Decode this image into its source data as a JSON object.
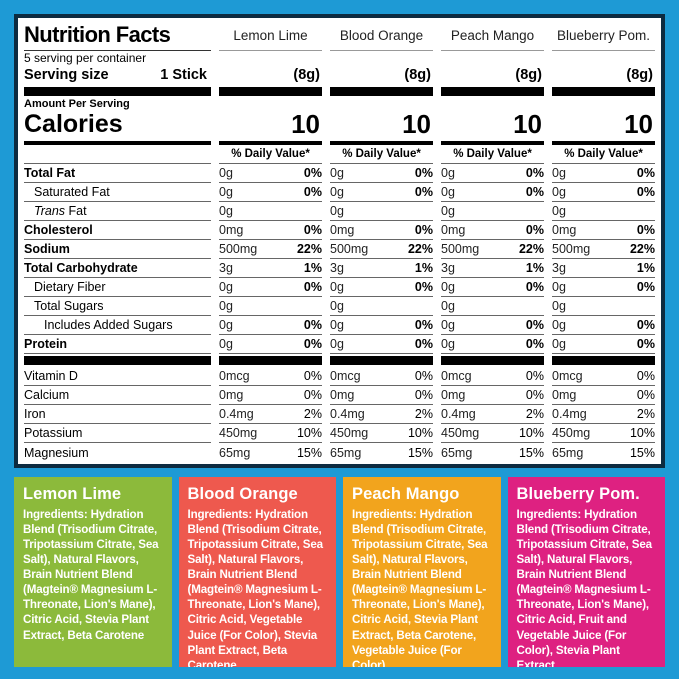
{
  "colors": {
    "background": "#1e9ad5",
    "panel_border": "#0d2b40",
    "bar": "#000000"
  },
  "panel": {
    "title": "Nutrition Facts",
    "servings_per_container": "5 serving per container",
    "serving_size_label": "Serving size",
    "serving_size_value": "1 Stick",
    "amount_per_serving": "Amount Per Serving",
    "calories_label": "Calories",
    "daily_value_header": "% Daily Value*",
    "columns": [
      {
        "flavor": "Lemon Lime",
        "serving": "(8g)",
        "calories": "10"
      },
      {
        "flavor": "Blood Orange",
        "serving": "(8g)",
        "calories": "10"
      },
      {
        "flavor": "Peach Mango",
        "serving": "(8g)",
        "calories": "10"
      },
      {
        "flavor": "Blueberry Pom.",
        "serving": "(8g)",
        "calories": "10"
      }
    ],
    "rows": [
      {
        "label": "Total Fat",
        "bold": true,
        "indent": 0,
        "amount": "0g",
        "dv": "0%",
        "dv_bold": true
      },
      {
        "label": "Saturated Fat",
        "bold": false,
        "indent": 1,
        "amount": "0g",
        "dv": "0%",
        "dv_bold": true
      },
      {
        "label_italic": "Trans",
        "label": " Fat",
        "bold": false,
        "indent": 1,
        "amount": "0g",
        "dv": "",
        "dv_bold": false
      },
      {
        "label": "Cholesterol",
        "bold": true,
        "indent": 0,
        "amount": "0mg",
        "dv": "0%",
        "dv_bold": true
      },
      {
        "label": "Sodium",
        "bold": true,
        "indent": 0,
        "amount": "500mg",
        "dv": "22%",
        "dv_bold": true
      },
      {
        "label": "Total Carbohydrate",
        "bold": true,
        "indent": 0,
        "amount": "3g",
        "dv": "1%",
        "dv_bold": true
      },
      {
        "label": "Dietary Fiber",
        "bold": false,
        "indent": 1,
        "amount": "0g",
        "dv": "0%",
        "dv_bold": true
      },
      {
        "label": "Total Sugars",
        "bold": false,
        "indent": 1,
        "amount": "0g",
        "dv": "",
        "dv_bold": false
      },
      {
        "label": "Includes Added Sugars",
        "bold": false,
        "indent": 2,
        "amount": "0g",
        "dv": "0%",
        "dv_bold": true
      },
      {
        "label": "Protein",
        "bold": true,
        "indent": 0,
        "amount": "0g",
        "dv": "0%",
        "dv_bold": true
      },
      {
        "divider": "thick-bar"
      },
      {
        "label": "Vitamin D",
        "bold": false,
        "indent": 0,
        "amount": "0mcg",
        "dv": "0%",
        "dv_bold": false
      },
      {
        "label": "Calcium",
        "bold": false,
        "indent": 0,
        "amount": "0mg",
        "dv": "0%",
        "dv_bold": false
      },
      {
        "label": "Iron",
        "bold": false,
        "indent": 0,
        "amount": "0.4mg",
        "dv": "2%",
        "dv_bold": false
      },
      {
        "label": "Potassium",
        "bold": false,
        "indent": 0,
        "amount": "450mg",
        "dv": "10%",
        "dv_bold": false
      },
      {
        "label": "Magnesium",
        "bold": false,
        "indent": 0,
        "amount": "65mg",
        "dv": "15%",
        "dv_bold": false
      }
    ]
  },
  "ingredient_boxes": [
    {
      "name": "Lemon Lime",
      "color": "#8cba3b",
      "text": "Ingredients: Hydration Blend (Trisodium Citrate, Tripotassium Citrate, Sea Salt), Natural Flavors, Brain Nutrient Blend (Magtein® Magnesium L-Threonate, Lion's Mane), Citric Acid, Stevia Plant Extract, Beta Carotene"
    },
    {
      "name": "Blood Orange",
      "color": "#ee594e",
      "text": "Ingredients: Hydration Blend (Trisodium Citrate, Tripotassium Citrate, Sea Salt), Natural Flavors, Brain Nutrient Blend (Magtein® Magnesium L-Threonate, Lion's Mane), Citric Acid, Vegetable Juice (For Color), Stevia Plant Extract, Beta Carotene"
    },
    {
      "name": "Peach Mango",
      "color": "#f2a41d",
      "text": "Ingredients: Hydration Blend (Trisodium Citrate, Tripotassium Citrate, Sea Salt), Natural Flavors, Brain Nutrient Blend (Magtein® Magnesium L-Threonate, Lion's Mane), Citric Acid, Stevia Plant Extract, Beta Carotene, Vegetable Juice (For Color)"
    },
    {
      "name": "Blueberry Pom.",
      "color": "#de2181",
      "text": "Ingredients: Hydration Blend (Trisodium Citrate, Tripotassium Citrate, Sea Salt), Natural Flavors, Brain Nutrient Blend (Magtein® Magnesium L-Threonate, Lion's Mane), Citric Acid, Fruit and Vegetable Juice (For Color), Stevia Plant Extract"
    }
  ]
}
